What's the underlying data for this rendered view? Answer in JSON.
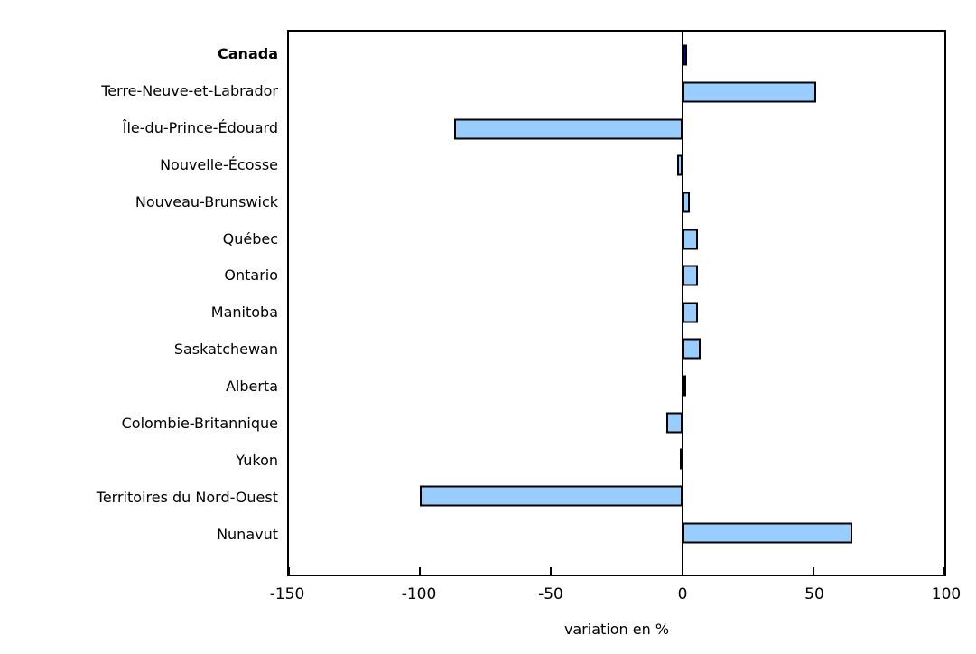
{
  "chart_data": {
    "type": "bar",
    "orientation": "horizontal",
    "title": "",
    "xlabel": "variation en %",
    "ylabel": "",
    "xlim": [
      -150,
      100
    ],
    "xticks": [
      -150,
      -100,
      -50,
      0,
      50,
      100
    ],
    "xtick_labels": [
      "-150",
      "-100",
      "-50",
      "0",
      "50",
      "100"
    ],
    "grid": false,
    "legend": false,
    "categories": [
      "Canada",
      "Terre-Neuve-et-Labrador",
      "Île-du-Prince-Édouard",
      "Nouvelle-Écosse",
      "Nouveau-Brunswick",
      "Québec",
      "Ontario",
      "Manitoba",
      "Saskatchewan",
      "Alberta",
      "Colombie-Britannique",
      "Yukon",
      "Territoires du Nord-Ouest",
      "Nunavut"
    ],
    "values": [
      2,
      51,
      -87,
      -2,
      3,
      6,
      6,
      6,
      7,
      1,
      -6,
      -1,
      -100,
      65
    ],
    "highlight_category": "Canada",
    "colors": {
      "bar_fill": "#99CCFF",
      "highlight_fill": "#0000CC",
      "bar_border": "#000000",
      "axis": "#000000",
      "background": "#FFFFFF"
    }
  }
}
